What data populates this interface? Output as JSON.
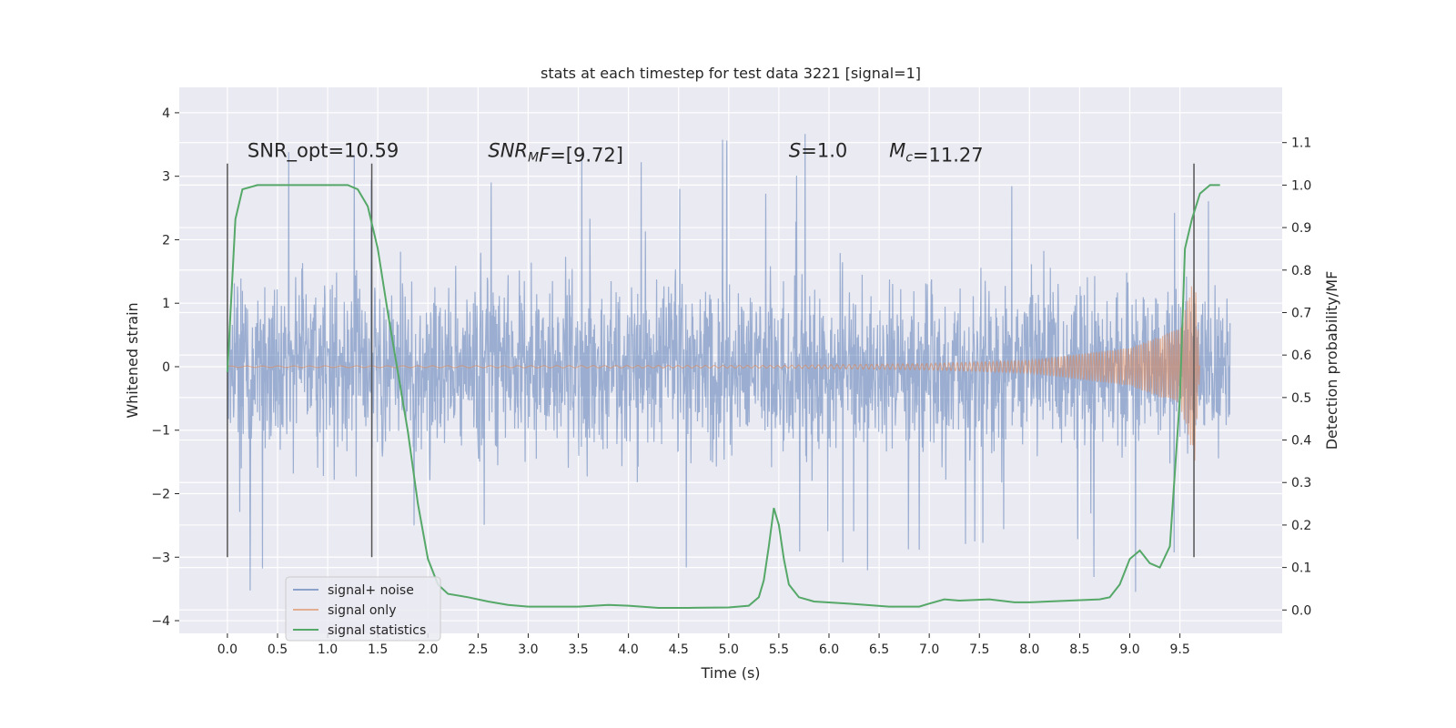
{
  "chart_data": {
    "type": "line",
    "title": "stats at each timestep for test data 3221 [signal=1]",
    "xlabel": "Time (s)",
    "ylabel": "Whitened strain",
    "y2label": "Detection probability/MF",
    "xlim": [
      -0.48,
      10.52
    ],
    "ylim": [
      -4.2,
      4.4
    ],
    "y2lim": [
      -0.055,
      1.23
    ],
    "x_ticks": [
      0.0,
      0.5,
      1.0,
      1.5,
      2.0,
      2.5,
      3.0,
      3.5,
      4.0,
      4.5,
      5.0,
      5.5,
      6.0,
      6.5,
      7.0,
      7.5,
      8.0,
      8.5,
      9.0,
      9.5
    ],
    "x_tick_labels": [
      "0.0",
      "0.5",
      "1.0",
      "1.5",
      "2.0",
      "2.5",
      "3.0",
      "3.5",
      "4.0",
      "4.5",
      "5.0",
      "5.5",
      "6.0",
      "6.5",
      "7.0",
      "7.5",
      "8.0",
      "8.5",
      "9.0",
      "9.5"
    ],
    "y_ticks": [
      -4,
      -3,
      -2,
      -1,
      0,
      1,
      2,
      3,
      4
    ],
    "y_tick_labels": [
      "−4",
      "−3",
      "−2",
      "−1",
      "0",
      "1",
      "2",
      "3",
      "4"
    ],
    "y2_ticks": [
      0.0,
      0.1,
      0.2,
      0.3,
      0.4,
      0.5,
      0.6,
      0.7,
      0.8,
      0.9,
      1.0,
      1.1
    ],
    "y2_tick_labels": [
      "0.0",
      "0.1",
      "0.2",
      "0.3",
      "0.4",
      "0.5",
      "0.6",
      "0.7",
      "0.8",
      "0.9",
      "1.0",
      "1.1"
    ],
    "grid": true,
    "legend_position": "lower-left",
    "series": [
      {
        "name": "signal+ noise",
        "color": "#4c72b0",
        "kind": "noise",
        "x_range": [
          0.0,
          10.0
        ],
        "typical_amplitude": 1.3,
        "peak_max": 4.05,
        "peak_min": -3.85
      },
      {
        "name": "signal only",
        "color": "#dd8452",
        "kind": "chirp",
        "x_range": [
          0.0,
          9.7
        ],
        "amplitude_envelope": [
          [
            0.0,
            0.01
          ],
          [
            5.5,
            0.02
          ],
          [
            7.0,
            0.05
          ],
          [
            8.0,
            0.1
          ],
          [
            9.0,
            0.3
          ],
          [
            9.5,
            0.6
          ],
          [
            9.65,
            1.5
          ],
          [
            9.7,
            0.0
          ]
        ]
      },
      {
        "name": "signal statistics",
        "color": "#55a868",
        "axis": "right",
        "points": [
          [
            0.0,
            0.56
          ],
          [
            0.08,
            0.92
          ],
          [
            0.15,
            0.99
          ],
          [
            0.3,
            1.0
          ],
          [
            1.2,
            1.0
          ],
          [
            1.3,
            0.99
          ],
          [
            1.4,
            0.95
          ],
          [
            1.5,
            0.85
          ],
          [
            1.6,
            0.7
          ],
          [
            1.8,
            0.42
          ],
          [
            1.9,
            0.25
          ],
          [
            2.0,
            0.12
          ],
          [
            2.1,
            0.06
          ],
          [
            2.2,
            0.038
          ],
          [
            2.4,
            0.03
          ],
          [
            2.6,
            0.02
          ],
          [
            2.8,
            0.012
          ],
          [
            3.0,
            0.008
          ],
          [
            3.5,
            0.008
          ],
          [
            3.8,
            0.012
          ],
          [
            4.0,
            0.01
          ],
          [
            4.3,
            0.005
          ],
          [
            4.6,
            0.005
          ],
          [
            5.0,
            0.006
          ],
          [
            5.2,
            0.01
          ],
          [
            5.3,
            0.03
          ],
          [
            5.35,
            0.07
          ],
          [
            5.4,
            0.15
          ],
          [
            5.45,
            0.24
          ],
          [
            5.5,
            0.2
          ],
          [
            5.55,
            0.12
          ],
          [
            5.6,
            0.06
          ],
          [
            5.7,
            0.03
          ],
          [
            5.85,
            0.02
          ],
          [
            6.2,
            0.015
          ],
          [
            6.6,
            0.008
          ],
          [
            6.9,
            0.008
          ],
          [
            7.0,
            0.015
          ],
          [
            7.15,
            0.025
          ],
          [
            7.3,
            0.022
          ],
          [
            7.6,
            0.025
          ],
          [
            7.85,
            0.018
          ],
          [
            8.0,
            0.018
          ],
          [
            8.4,
            0.022
          ],
          [
            8.7,
            0.025
          ],
          [
            8.8,
            0.03
          ],
          [
            8.9,
            0.06
          ],
          [
            9.0,
            0.12
          ],
          [
            9.1,
            0.14
          ],
          [
            9.2,
            0.11
          ],
          [
            9.3,
            0.1
          ],
          [
            9.4,
            0.15
          ],
          [
            9.5,
            0.5
          ],
          [
            9.55,
            0.85
          ],
          [
            9.62,
            0.92
          ],
          [
            9.7,
            0.98
          ],
          [
            9.8,
            1.0
          ],
          [
            9.9,
            1.0
          ]
        ]
      }
    ],
    "vertical_lines": [
      0.0,
      1.44,
      9.64
    ],
    "vertical_line_range": [
      -3.0,
      3.2
    ],
    "annotations": [
      {
        "text": "SNR_opt=10.59",
        "x": 0.2,
        "y": 3.3
      },
      {
        "text": "=[9.72]",
        "prefix": "SNR",
        "sub": "M",
        "suffix_italic": "F",
        "x": 2.6,
        "y": 3.3
      },
      {
        "text": "=1.0",
        "prefix": "S",
        "x": 5.6,
        "y": 3.3
      },
      {
        "text": "=11.27",
        "prefix": "M",
        "sub": "c",
        "x": 6.6,
        "y": 3.3
      }
    ]
  }
}
